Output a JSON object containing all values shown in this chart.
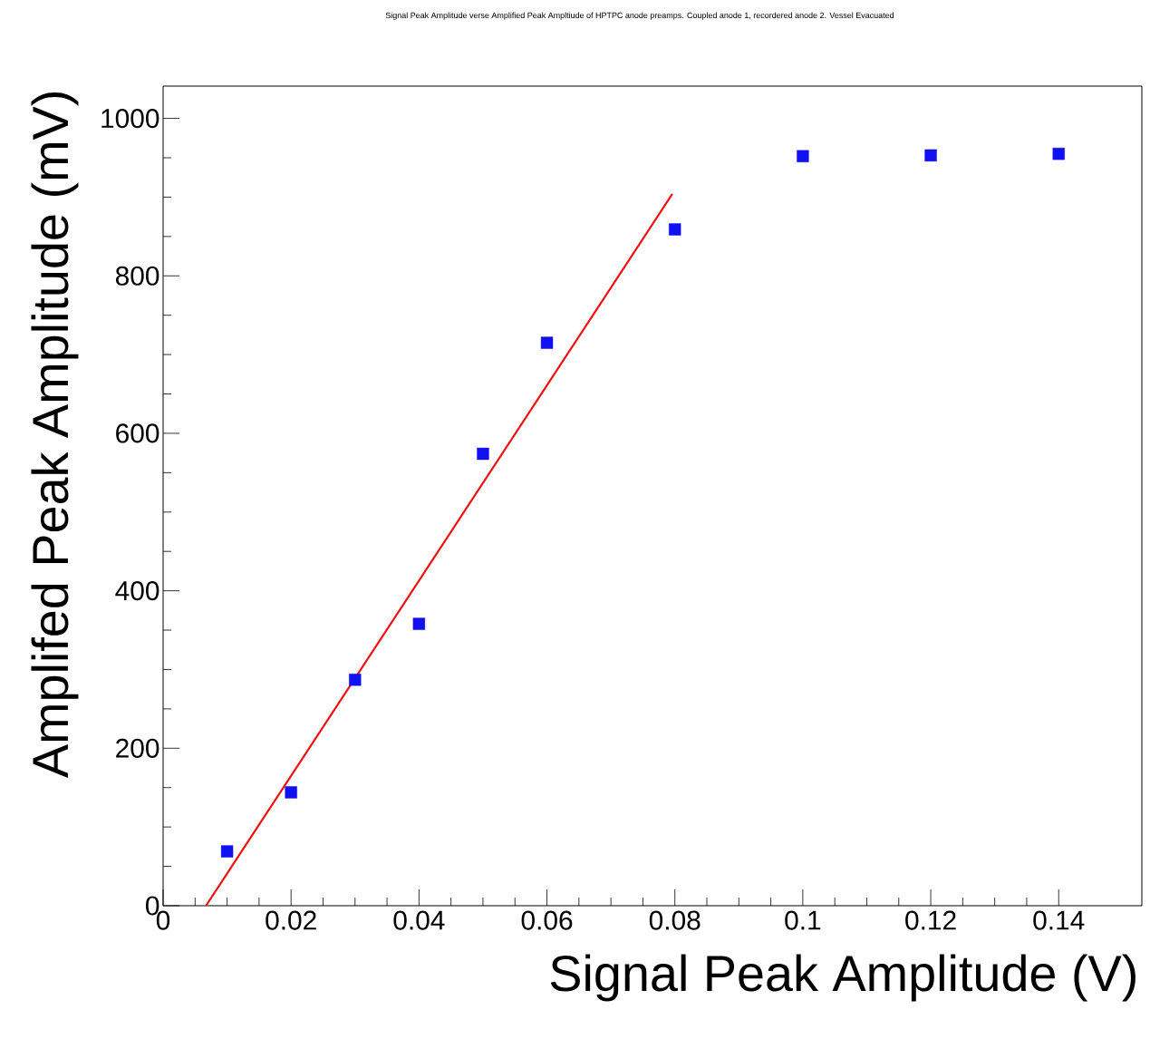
{
  "chart_data": {
    "type": "scatter",
    "title": "Signal Peak Amplitude verse Amplified Peak Ampltiude of HPTPC anode preamps. Coupled anode 1, recordered anode 2. Vessel Evacuated",
    "xlabel": "Signal Peak Amplitude (V)",
    "ylabel": "Amplifed Peak Amplitude (mV)",
    "xlim": [
      0,
      0.153
    ],
    "ylim": [
      0,
      1041
    ],
    "xticks": [
      0,
      0.02,
      0.04,
      0.06,
      0.08,
      0.1,
      0.12,
      0.14
    ],
    "yticks": [
      0,
      200,
      400,
      600,
      800,
      1000
    ],
    "grid": false,
    "series": [
      {
        "marker": "square",
        "color": "#1010f0",
        "x": [
          0.01,
          0.02,
          0.03,
          0.04,
          0.05,
          0.06,
          0.08,
          0.1,
          0.12,
          0.14
        ],
        "values": [
          69,
          144,
          287,
          358,
          574,
          715,
          859,
          952,
          953,
          955
        ]
      },
      {
        "type": "line",
        "color": "#ee1111",
        "x": [
          0.0067,
          0.0796
        ],
        "values": [
          0,
          904
        ]
      }
    ]
  }
}
